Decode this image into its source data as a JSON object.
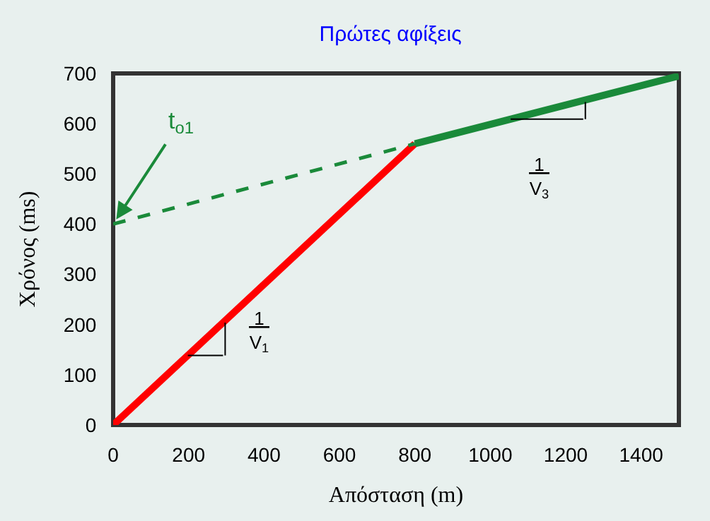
{
  "chart_data": {
    "type": "line",
    "title": "Πρώτες αφίξεις",
    "xlabel": "Απόσταση (m)",
    "ylabel": "Χρόνος (ms)",
    "series": [
      {
        "color": "#ff0000",
        "x": [
          0,
          800
        ],
        "values": [
          0,
          560
        ],
        "line_style": "solid"
      },
      {
        "color": "#1a8a3a",
        "x": [
          800,
          1500
        ],
        "values": [
          560,
          695
        ],
        "line_style": "solid"
      },
      {
        "color": "#1a8a3a",
        "x": [
          0,
          800
        ],
        "values": [
          400,
          560
        ],
        "line_style": "dashed"
      }
    ],
    "annotations": [
      {
        "text": "t$_{o1}$",
        "x": 0,
        "y": 400
      },
      "1\nV$_{1}$",
      "1\nV$_{3}$"
    ],
    "xlim": [
      0,
      1500
    ],
    "ylim": [
      0,
      700
    ],
    "xticks": [
      0,
      200,
      400,
      600,
      800,
      1000,
      1200,
      1400
    ],
    "yticks": [
      0,
      100,
      200,
      300,
      400,
      500,
      600,
      700
    ],
    "grid": false,
    "marker": "none"
  }
}
